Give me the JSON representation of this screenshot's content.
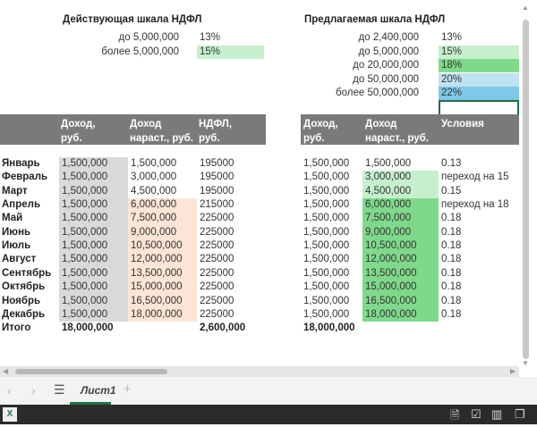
{
  "current_scale": {
    "title": "Действующая шкала НДФЛ",
    "rows": [
      {
        "label": "до 5,000,000",
        "rate": "13%",
        "color": ""
      },
      {
        "label": "более 5,000,000",
        "rate": "15%",
        "color": "#c6efce"
      }
    ]
  },
  "proposed_scale": {
    "title": "Предлагаемая шкала НДФЛ",
    "rows": [
      {
        "label": "до 2,400,000",
        "rate": "13%",
        "color": ""
      },
      {
        "label": "до 5,000,000",
        "rate": "15%",
        "color": "#c6efce"
      },
      {
        "label": "до 20,000,000",
        "rate": "18%",
        "color": "#7fd98a"
      },
      {
        "label": "до 50,000,000",
        "rate": "20%",
        "color": "#bfe3f2"
      },
      {
        "label": "более 50,000,000",
        "rate": "22%",
        "color": "#7fc8e8"
      }
    ]
  },
  "headers": {
    "left": [
      "Доход, руб.",
      "Доход нараст., руб.",
      "НДФЛ, руб."
    ],
    "right": [
      "Доход, руб.",
      "Доход нараст., руб.",
      "Условия"
    ]
  },
  "rows": [
    {
      "month": "Январь",
      "income": "1,500,000",
      "cum": "1,500,000",
      "tax": "195000",
      "p_income": "1,500,000",
      "p_cum": "1,500,000",
      "cond": "0.13"
    },
    {
      "month": "Февраль",
      "income": "1,500,000",
      "cum": "3,000,000",
      "tax": "195000",
      "p_income": "1,500,000",
      "p_cum": "3,000,000",
      "cond": "переход на 15"
    },
    {
      "month": "Март",
      "income": "1,500,000",
      "cum": "4,500,000",
      "tax": "195000",
      "p_income": "1,500,000",
      "p_cum": "4,500,000",
      "cond": "0.15"
    },
    {
      "month": "Апрель",
      "income": "1,500,000",
      "cum": "6,000,000",
      "tax": "215000",
      "p_income": "1,500,000",
      "p_cum": "6,000,000",
      "cond": "переход на 18"
    },
    {
      "month": "Май",
      "income": "1,500,000",
      "cum": "7,500,000",
      "tax": "225000",
      "p_income": "1,500,000",
      "p_cum": "7,500,000",
      "cond": "0.18"
    },
    {
      "month": "Июнь",
      "income": "1,500,000",
      "cum": "9,000,000",
      "tax": "225000",
      "p_income": "1,500,000",
      "p_cum": "9,000,000",
      "cond": "0.18"
    },
    {
      "month": "Июль",
      "income": "1,500,000",
      "cum": "10,500,000",
      "tax": "225000",
      "p_income": "1,500,000",
      "p_cum": "10,500,000",
      "cond": "0.18"
    },
    {
      "month": "Август",
      "income": "1,500,000",
      "cum": "12,000,000",
      "tax": "225000",
      "p_income": "1,500,000",
      "p_cum": "12,000,000",
      "cond": "0.18"
    },
    {
      "month": "Сентябрь",
      "income": "1,500,000",
      "cum": "13,500,000",
      "tax": "225000",
      "p_income": "1,500,000",
      "p_cum": "13,500,000",
      "cond": "0.18"
    },
    {
      "month": "Октябрь",
      "income": "1,500,000",
      "cum": "15,000,000",
      "tax": "225000",
      "p_income": "1,500,000",
      "p_cum": "15,000,000",
      "cond": "0.18"
    },
    {
      "month": "Ноябрь",
      "income": "1,500,000",
      "cum": "16,500,000",
      "tax": "225000",
      "p_income": "1,500,000",
      "p_cum": "16,500,000",
      "cond": "0.18"
    },
    {
      "month": "Декабрь",
      "income": "1,500,000",
      "cum": "18,000,000",
      "tax": "225000",
      "p_income": "1,500,000",
      "p_cum": "18,000,000",
      "cond": "0.18"
    }
  ],
  "totals": {
    "label": "Итого",
    "income": "18,000,000",
    "tax": "2,600,000",
    "p_income": "18,000,000"
  },
  "colors": {
    "gray": "#d9d9d9",
    "peach": "#fce4d6",
    "light_green": "#c6efce",
    "green": "#7fd98a"
  },
  "sheet_tab": "Лист1"
}
